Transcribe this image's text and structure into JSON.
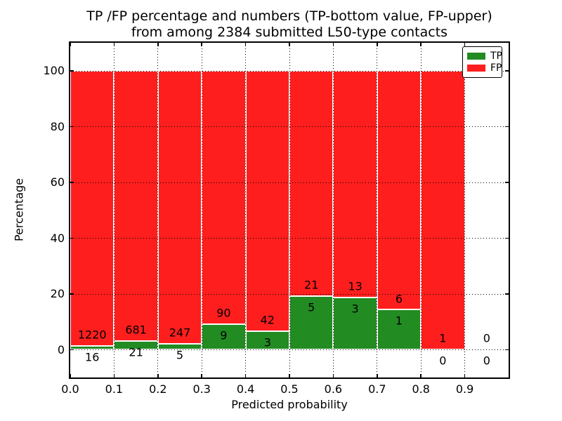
{
  "title": {
    "line1": "TP /FP percentage and numbers (TP-bottom value, FP-upper)",
    "line2": "from among 2384 submitted L50-type contacts"
  },
  "axes": {
    "xlabel": "Predicted probability",
    "ylabel": "Percentage",
    "x_tick_labels": [
      "0.0",
      "0.1",
      "0.2",
      "0.3",
      "0.4",
      "0.5",
      "0.6",
      "0.7",
      "0.8",
      "0.9"
    ],
    "y_tick_labels": [
      "0",
      "20",
      "40",
      "60",
      "80",
      "100"
    ]
  },
  "legend": {
    "items": [
      {
        "label": "TP",
        "color": "#228b22"
      },
      {
        "label": "FP",
        "color": "#ff1e1e"
      }
    ]
  },
  "chart_data": {
    "type": "bar",
    "stacked": true,
    "normalized": "each bin scaled to 100%",
    "title": "TP /FP percentage and numbers (TP-bottom value, FP-upper) from among 2384 submitted L50-type contacts",
    "xlabel": "Predicted probability",
    "ylabel": "Percentage",
    "total_contacts": 2384,
    "xlim": [
      0.0,
      1.0
    ],
    "ylim": [
      -10,
      110
    ],
    "grid": "dotted both axes",
    "legend_position": "upper right",
    "colors": {
      "tp": "#228b22",
      "fp": "#ff1e1e"
    },
    "categories": [
      "0.0-0.1",
      "0.1-0.2",
      "0.2-0.3",
      "0.3-0.4",
      "0.4-0.5",
      "0.5-0.6",
      "0.6-0.7",
      "0.7-0.8",
      "0.8-0.9",
      "0.9-1.0"
    ],
    "series": [
      {
        "name": "TP",
        "values": [
          16,
          21,
          5,
          9,
          3,
          5,
          3,
          1,
          0,
          0
        ]
      },
      {
        "name": "FP",
        "values": [
          1220,
          681,
          247,
          90,
          42,
          21,
          13,
          6,
          1,
          0
        ]
      }
    ],
    "tp_percent_of_bin": [
      1.29,
      2.99,
      1.98,
      9.09,
      6.67,
      19.23,
      18.75,
      14.29,
      0.0,
      0.0
    ],
    "bins": [
      {
        "x0": 0.0,
        "x1": 0.1,
        "tp": 16,
        "fp": 1220
      },
      {
        "x0": 0.1,
        "x1": 0.2,
        "tp": 21,
        "fp": 681
      },
      {
        "x0": 0.2,
        "x1": 0.3,
        "tp": 5,
        "fp": 247
      },
      {
        "x0": 0.3,
        "x1": 0.4,
        "tp": 9,
        "fp": 90
      },
      {
        "x0": 0.4,
        "x1": 0.5,
        "tp": 3,
        "fp": 42
      },
      {
        "x0": 0.5,
        "x1": 0.6,
        "tp": 5,
        "fp": 21
      },
      {
        "x0": 0.6,
        "x1": 0.7,
        "tp": 3,
        "fp": 13
      },
      {
        "x0": 0.7,
        "x1": 0.8,
        "tp": 1,
        "fp": 6
      },
      {
        "x0": 0.8,
        "x1": 0.9,
        "tp": 0,
        "fp": 1
      },
      {
        "x0": 0.9,
        "x1": 1.0,
        "tp": 0,
        "fp": 0
      }
    ],
    "x_ticks": [
      0.0,
      0.1,
      0.2,
      0.3,
      0.4,
      0.5,
      0.6,
      0.7,
      0.8,
      0.9
    ],
    "y_ticks": [
      0,
      20,
      40,
      60,
      80,
      100
    ],
    "count_label_offset_pct": 4
  }
}
